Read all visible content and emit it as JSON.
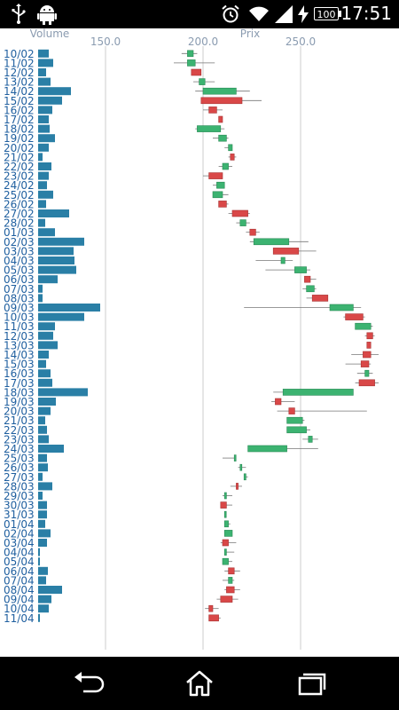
{
  "status_bar": {
    "time": "17:51",
    "battery": "100",
    "icons": [
      "usb-icon",
      "android-icon",
      "alarm-icon",
      "wifi-icon",
      "signal-icon",
      "charging-icon"
    ]
  },
  "navigation": {
    "back": "back-icon",
    "home": "home-icon",
    "recents": "recents-icon"
  },
  "colors": {
    "volume": "#2a7fa6",
    "up": "#3cb371",
    "down": "#d94848",
    "axis_text": "#8a9bb0",
    "date_text": "#1f5f9f",
    "grid": "#cccccc"
  },
  "chart_data": {
    "type": "candlestick",
    "volume_label": "Volume",
    "price_label": "Prix",
    "price_ticks": [
      "150.0",
      "200.0",
      "250.0"
    ],
    "price_range": [
      115,
      280
    ],
    "dates": [
      "10/02",
      "11/02",
      "12/02",
      "13/02",
      "14/02",
      "15/02",
      "16/02",
      "17/02",
      "18/02",
      "19/02",
      "20/02",
      "21/02",
      "22/02",
      "23/02",
      "24/02",
      "25/02",
      "26/02",
      "27/02",
      "28/02",
      "01/03",
      "02/03",
      "03/03",
      "04/03",
      "05/03",
      "06/03",
      "07/03",
      "08/03",
      "09/03",
      "10/03",
      "11/03",
      "12/03",
      "13/03",
      "14/03",
      "15/03",
      "16/03",
      "17/03",
      "18/03",
      "19/03",
      "20/03",
      "21/03",
      "22/03",
      "23/03",
      "24/03",
      "25/03",
      "26/03",
      "27/03",
      "28/03",
      "29/03",
      "30/03",
      "31/03",
      "01/04",
      "02/04",
      "03/04",
      "04/04",
      "05/04",
      "06/04",
      "07/04",
      "08/04",
      "09/04",
      "10/04",
      "11/04"
    ],
    "volume": [
      12,
      17,
      9,
      14,
      37,
      27,
      16,
      12,
      13,
      19,
      12,
      5,
      15,
      12,
      10,
      17,
      9,
      35,
      8,
      19,
      52,
      40,
      41,
      43,
      22,
      5,
      5,
      70,
      52,
      19,
      17,
      22,
      12,
      9,
      14,
      16,
      56,
      20,
      14,
      8,
      10,
      12,
      29,
      10,
      11,
      5,
      16,
      5,
      10,
      10,
      8,
      14,
      10,
      2,
      2,
      11,
      9,
      27,
      15,
      12,
      2
    ]
  }
}
